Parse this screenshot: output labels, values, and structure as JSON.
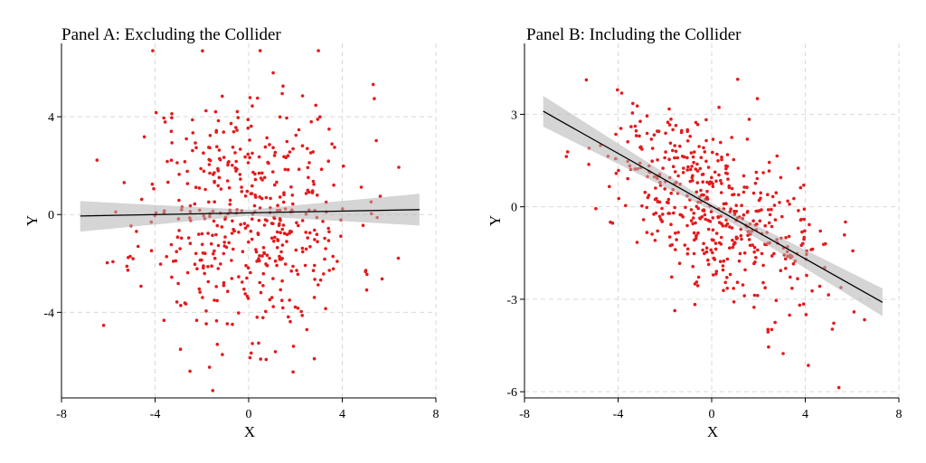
{
  "colors": {
    "points": "#e31a1c",
    "band": "#b3b3b3",
    "line": "#000000",
    "grid": "#d9d9d9"
  },
  "chart_data": [
    {
      "type": "scatter",
      "title": "Panel A: Excluding the Collider",
      "xlabel": "X",
      "ylabel": "Y",
      "xlim": [
        -8,
        8
      ],
      "ylim": [
        -7.5,
        7
      ],
      "xticks": [
        -8,
        -4,
        0,
        4,
        8
      ],
      "yticks": [
        -4,
        0,
        4
      ],
      "grid": true,
      "n_points": 500,
      "seed": 11,
      "slope": 0.02,
      "intercept": 0.05,
      "noise_sd": 2.6,
      "x_sd": 2.3,
      "fit": {
        "x": [
          -7.2,
          7.3
        ],
        "y": [
          -0.06,
          0.2
        ]
      },
      "ci_band": {
        "x": [
          -7.2,
          0,
          7.3
        ],
        "lower": [
          -0.7,
          -0.05,
          -0.45
        ],
        "upper": [
          0.55,
          0.2,
          0.85
        ]
      }
    },
    {
      "type": "scatter",
      "title": "Panel B: Including the Collider",
      "xlabel": "X",
      "ylabel": "Y",
      "xlim": [
        -8,
        8
      ],
      "ylim": [
        -6.2,
        5.3
      ],
      "xticks": [
        -8,
        -4,
        0,
        4,
        8
      ],
      "yticks": [
        -6,
        -3,
        0,
        3
      ],
      "grid": true,
      "n_points": 500,
      "seed": 29,
      "slope": -0.43,
      "intercept": 0.0,
      "noise_sd": 1.35,
      "x_sd": 2.3,
      "fit": {
        "x": [
          -7.2,
          7.3
        ],
        "y": [
          3.1,
          -3.1
        ]
      },
      "ci_band": {
        "x": [
          -7.2,
          0,
          7.3
        ],
        "lower": [
          2.6,
          -0.12,
          -3.55
        ],
        "upper": [
          3.6,
          0.12,
          -2.65
        ]
      }
    }
  ]
}
